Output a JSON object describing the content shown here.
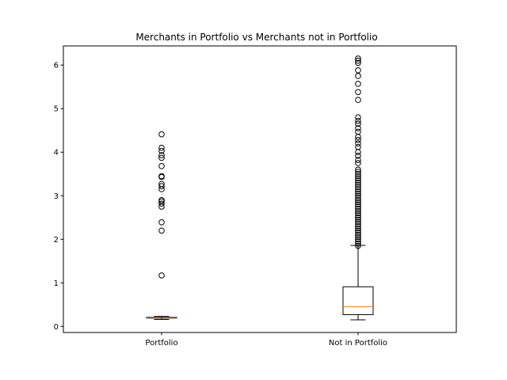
{
  "chart_data": {
    "type": "box",
    "title": "Merchants in Portfolio vs Merchants not in Portfolio",
    "xlabel": "",
    "ylabel": "",
    "categories": [
      "Portfolio",
      "Not in Portfolio"
    ],
    "ylim": [
      -0.14,
      6.44
    ],
    "yticks": [
      0,
      1,
      2,
      3,
      4,
      5,
      6
    ],
    "grid": false,
    "colors": {
      "box": "#000000",
      "median": "#ff7f0e",
      "flier": "#000000"
    },
    "boxes": [
      {
        "category": "Portfolio",
        "whisker_low": 0.16,
        "q1": 0.19,
        "median": 0.2,
        "q3": 0.21,
        "whisker_high": 0.23,
        "outliers": [
          1.17,
          2.2,
          2.39,
          2.75,
          2.82,
          2.87,
          2.9,
          3.15,
          3.22,
          3.27,
          3.43,
          3.45,
          3.68,
          3.87,
          3.93,
          4.03,
          4.1,
          4.41
        ]
      },
      {
        "category": "Not in Portfolio",
        "whisker_low": 0.15,
        "q1": 0.27,
        "median": 0.45,
        "q3": 0.91,
        "whisker_high": 1.86,
        "outliers": [
          1.85,
          1.9,
          1.95,
          2.0,
          2.05,
          2.1,
          2.15,
          2.2,
          2.25,
          2.3,
          2.35,
          2.4,
          2.45,
          2.5,
          2.55,
          2.6,
          2.65,
          2.7,
          2.75,
          2.8,
          2.85,
          2.9,
          2.95,
          3.0,
          3.05,
          3.1,
          3.15,
          3.2,
          3.25,
          3.3,
          3.35,
          3.4,
          3.45,
          3.5,
          3.55,
          3.6,
          3.75,
          3.82,
          3.92,
          4.0,
          4.12,
          4.2,
          4.28,
          4.35,
          4.47,
          4.55,
          4.65,
          4.72,
          4.8,
          5.2,
          5.38,
          5.57,
          5.75,
          5.88,
          6.05,
          6.1,
          6.15
        ]
      }
    ]
  }
}
